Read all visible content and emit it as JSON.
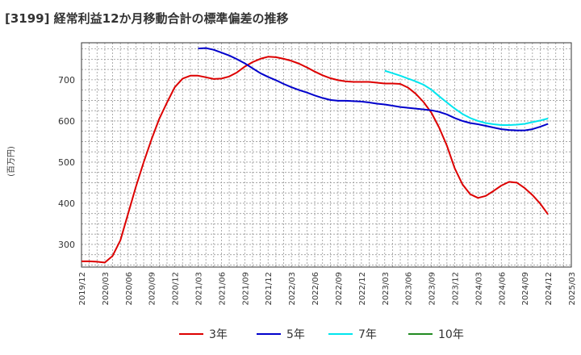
{
  "chart_data": {
    "type": "line",
    "title": "[3199]  経常利益12か月移動合計の標準偏差の推移",
    "ylabel": "(百万円)",
    "xlabel": "",
    "ylim": [
      245,
      790
    ],
    "yticks": [
      300,
      400,
      500,
      600,
      700
    ],
    "xticks": [
      "2019/12",
      "2020/03",
      "2020/06",
      "2020/09",
      "2020/12",
      "2021/03",
      "2021/06",
      "2021/09",
      "2021/12",
      "2022/03",
      "2022/06",
      "2022/09",
      "2022/12",
      "2023/03",
      "2023/06",
      "2023/09",
      "2023/12",
      "2024/03",
      "2024/06",
      "2024/09",
      "2024/12",
      "2025/03"
    ],
    "grid": true,
    "legend_position": "bottom",
    "series": [
      {
        "name": "3年",
        "color": "#dd0000",
        "x": [
          "2019/12",
          "2020/01",
          "2020/02",
          "2020/03",
          "2020/04",
          "2020/05",
          "2020/06",
          "2020/07",
          "2020/08",
          "2020/09",
          "2020/10",
          "2020/11",
          "2020/12",
          "2021/01",
          "2021/02",
          "2021/03",
          "2021/04",
          "2021/05",
          "2021/06",
          "2021/07",
          "2021/08",
          "2021/09",
          "2021/10",
          "2021/11",
          "2021/12",
          "2022/01",
          "2022/02",
          "2022/03",
          "2022/04",
          "2022/05",
          "2022/06",
          "2022/07",
          "2022/08",
          "2022/09",
          "2022/10",
          "2022/11",
          "2022/12",
          "2023/01",
          "2023/02",
          "2023/03",
          "2023/04",
          "2023/05",
          "2023/06",
          "2023/07",
          "2023/08",
          "2023/09",
          "2023/10",
          "2023/11",
          "2023/12",
          "2024/01",
          "2024/02",
          "2024/03",
          "2024/04",
          "2024/05",
          "2024/06",
          "2024/07",
          "2024/08",
          "2024/09",
          "2024/10",
          "2024/11",
          "2024/12"
        ],
        "values": [
          259,
          259,
          258,
          256,
          272,
          310,
          375,
          440,
          500,
          555,
          605,
          645,
          682,
          703,
          710,
          710,
          706,
          702,
          703,
          708,
          718,
          732,
          743,
          751,
          756,
          755,
          751,
          746,
          739,
          730,
          720,
          711,
          704,
          699,
          696,
          695,
          695,
          695,
          693,
          691,
          691,
          690,
          681,
          666,
          646,
          620,
          584,
          540,
          485,
          446,
          422,
          413,
          418,
          430,
          443,
          452,
          450,
          437,
          420,
          399,
          373
        ]
      },
      {
        "name": "5年",
        "color": "#0000cc",
        "x": [
          "2021/03",
          "2021/04",
          "2021/05",
          "2021/06",
          "2021/07",
          "2021/08",
          "2021/09",
          "2021/10",
          "2021/11",
          "2021/12",
          "2022/01",
          "2022/02",
          "2022/03",
          "2022/04",
          "2022/05",
          "2022/06",
          "2022/07",
          "2022/08",
          "2022/09",
          "2022/10",
          "2022/11",
          "2022/12",
          "2023/01",
          "2023/02",
          "2023/03",
          "2023/04",
          "2023/05",
          "2023/06",
          "2023/07",
          "2023/08",
          "2023/09",
          "2023/10",
          "2023/11",
          "2023/12",
          "2024/01",
          "2024/02",
          "2024/03",
          "2024/04",
          "2024/05",
          "2024/06",
          "2024/07",
          "2024/08",
          "2024/09",
          "2024/10",
          "2024/11",
          "2024/12"
        ],
        "values": [
          776,
          777,
          773,
          766,
          759,
          750,
          740,
          728,
          716,
          707,
          699,
          690,
          682,
          675,
          669,
          662,
          656,
          651,
          649,
          649,
          648,
          647,
          645,
          642,
          640,
          637,
          634,
          632,
          630,
          628,
          626,
          622,
          616,
          607,
          600,
          595,
          592,
          588,
          584,
          580,
          578,
          577,
          577,
          580,
          586,
          593
        ]
      },
      {
        "name": "7年",
        "color": "#00e5ee",
        "x": [
          "2023/03",
          "2023/04",
          "2023/05",
          "2023/06",
          "2023/07",
          "2023/08",
          "2023/09",
          "2023/10",
          "2023/11",
          "2023/12",
          "2024/01",
          "2024/02",
          "2024/03",
          "2024/04",
          "2024/05",
          "2024/06",
          "2024/07",
          "2024/08",
          "2024/09",
          "2024/10",
          "2024/11",
          "2024/12"
        ],
        "values": [
          722,
          716,
          710,
          703,
          696,
          688,
          676,
          660,
          645,
          630,
          617,
          607,
          600,
          595,
          592,
          590,
          590,
          591,
          593,
          597,
          601,
          606
        ]
      },
      {
        "name": "10年",
        "color": "#228b22",
        "x": [],
        "values": []
      }
    ]
  }
}
